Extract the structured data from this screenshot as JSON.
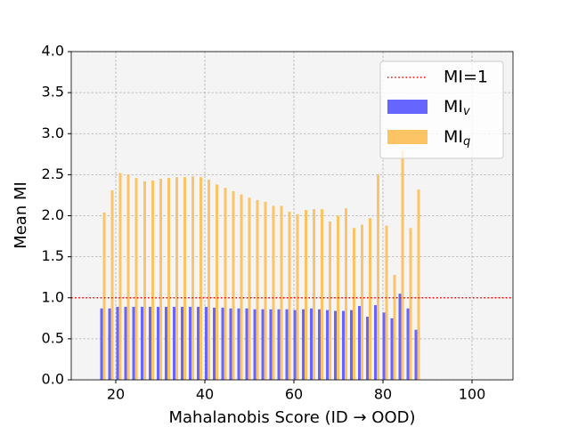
{
  "chart_data": {
    "type": "bar",
    "xlabel": "Mahalanobis Score (ID → OOD)",
    "ylabel": "Mean MI",
    "x": [
      17.1,
      18.9,
      20.7,
      22.5,
      24.3,
      26.2,
      28.0,
      29.8,
      31.6,
      33.4,
      35.2,
      37.0,
      38.8,
      40.6,
      42.4,
      44.3,
      46.1,
      47.9,
      49.7,
      51.5,
      53.3,
      55.1,
      56.9,
      58.7,
      60.5,
      62.4,
      64.2,
      66.0,
      67.8,
      69.6,
      71.4,
      73.2,
      75.0,
      76.8,
      78.6,
      80.5,
      82.3,
      84.1,
      85.9,
      87.7
    ],
    "series": [
      {
        "name": "MI",
        "name_sub": "v",
        "color": "#6666ff",
        "values": [
          0.87,
          0.87,
          0.89,
          0.89,
          0.89,
          0.89,
          0.89,
          0.89,
          0.89,
          0.89,
          0.89,
          0.89,
          0.89,
          0.89,
          0.88,
          0.88,
          0.87,
          0.87,
          0.87,
          0.86,
          0.86,
          0.86,
          0.86,
          0.86,
          0.85,
          0.86,
          0.87,
          0.86,
          0.85,
          0.84,
          0.84,
          0.85,
          0.9,
          0.77,
          0.91,
          0.82,
          0.75,
          1.05,
          0.87,
          0.61
        ]
      },
      {
        "name": "MI",
        "name_sub": "q",
        "color": "#fdc466",
        "values": [
          2.04,
          2.31,
          2.52,
          2.5,
          2.46,
          2.42,
          2.43,
          2.45,
          2.46,
          2.47,
          2.47,
          2.48,
          2.47,
          2.44,
          2.38,
          2.34,
          2.3,
          2.26,
          2.22,
          2.19,
          2.17,
          2.12,
          2.12,
          2.05,
          2.02,
          2.07,
          2.08,
          2.08,
          1.93,
          2.0,
          2.09,
          1.85,
          1.89,
          1.97,
          2.5,
          1.88,
          1.28,
          2.8,
          1.85,
          2.32
        ]
      }
    ],
    "hline": {
      "y": 1,
      "label": "MI=1",
      "color": "#ff0000"
    },
    "xlim": [
      10,
      109.2
    ],
    "ylim": [
      0,
      4
    ],
    "xticks": [
      20,
      40,
      60,
      80,
      100
    ],
    "yticks": [
      {
        "value": 0,
        "label": "0.0"
      },
      {
        "value": 0.5,
        "label": "0.5"
      },
      {
        "value": 1,
        "label": "1.0"
      },
      {
        "value": 1.5,
        "label": "1.5"
      },
      {
        "value": 2,
        "label": "2.0"
      },
      {
        "value": 2.5,
        "label": "2.5"
      },
      {
        "value": 3,
        "label": "3.0"
      },
      {
        "value": 3.5,
        "label": "3.5"
      },
      {
        "value": 4,
        "label": "4.0"
      }
    ],
    "grid": true,
    "legend": "upper right"
  }
}
